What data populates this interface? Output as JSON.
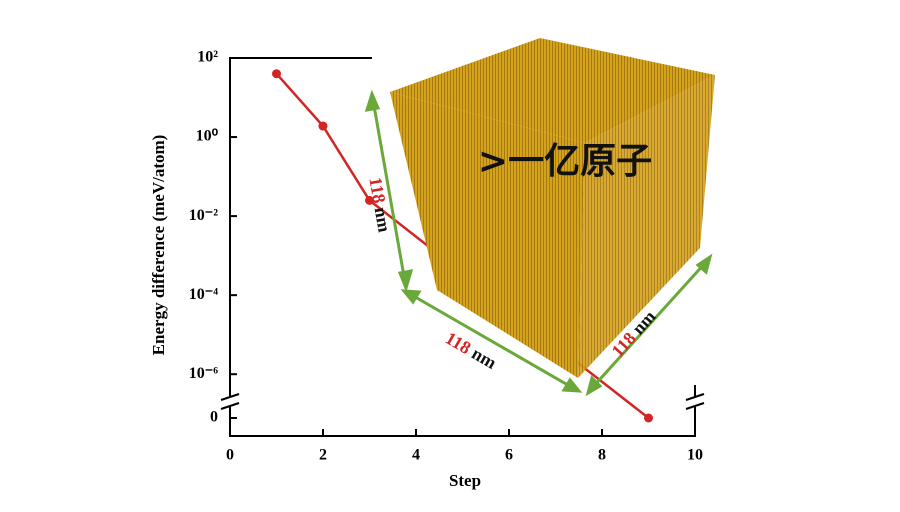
{
  "chart_data": {
    "type": "line",
    "x_label": "Step",
    "y_label": "Energy difference (meV/atom)",
    "x": [
      1,
      2,
      3,
      9
    ],
    "series": [
      {
        "color": "#d42424",
        "values": [
          40,
          1.9,
          0.025,
          0
        ]
      }
    ],
    "xlim": [
      0,
      10
    ],
    "xticks": [
      0,
      2,
      4,
      6,
      8,
      10
    ],
    "log_y": true,
    "ylim": [
      2.5e-07,
      100
    ],
    "yticks": [
      {
        "value": 100,
        "label": "10²"
      },
      {
        "value": 1,
        "label": "10⁰"
      },
      {
        "value": 0.01,
        "label": "10⁻²"
      },
      {
        "value": 0.0001,
        "label": "10⁻⁴"
      },
      {
        "value": 1e-06,
        "label": "10⁻⁶"
      },
      0
    ],
    "cube_label": ">一亿原子",
    "dimensions": [
      {
        "value": "118",
        "unit": "nm"
      },
      {
        "value": "118",
        "unit": "nm"
      },
      {
        "value": "118",
        "unit": "nm"
      }
    ]
  }
}
